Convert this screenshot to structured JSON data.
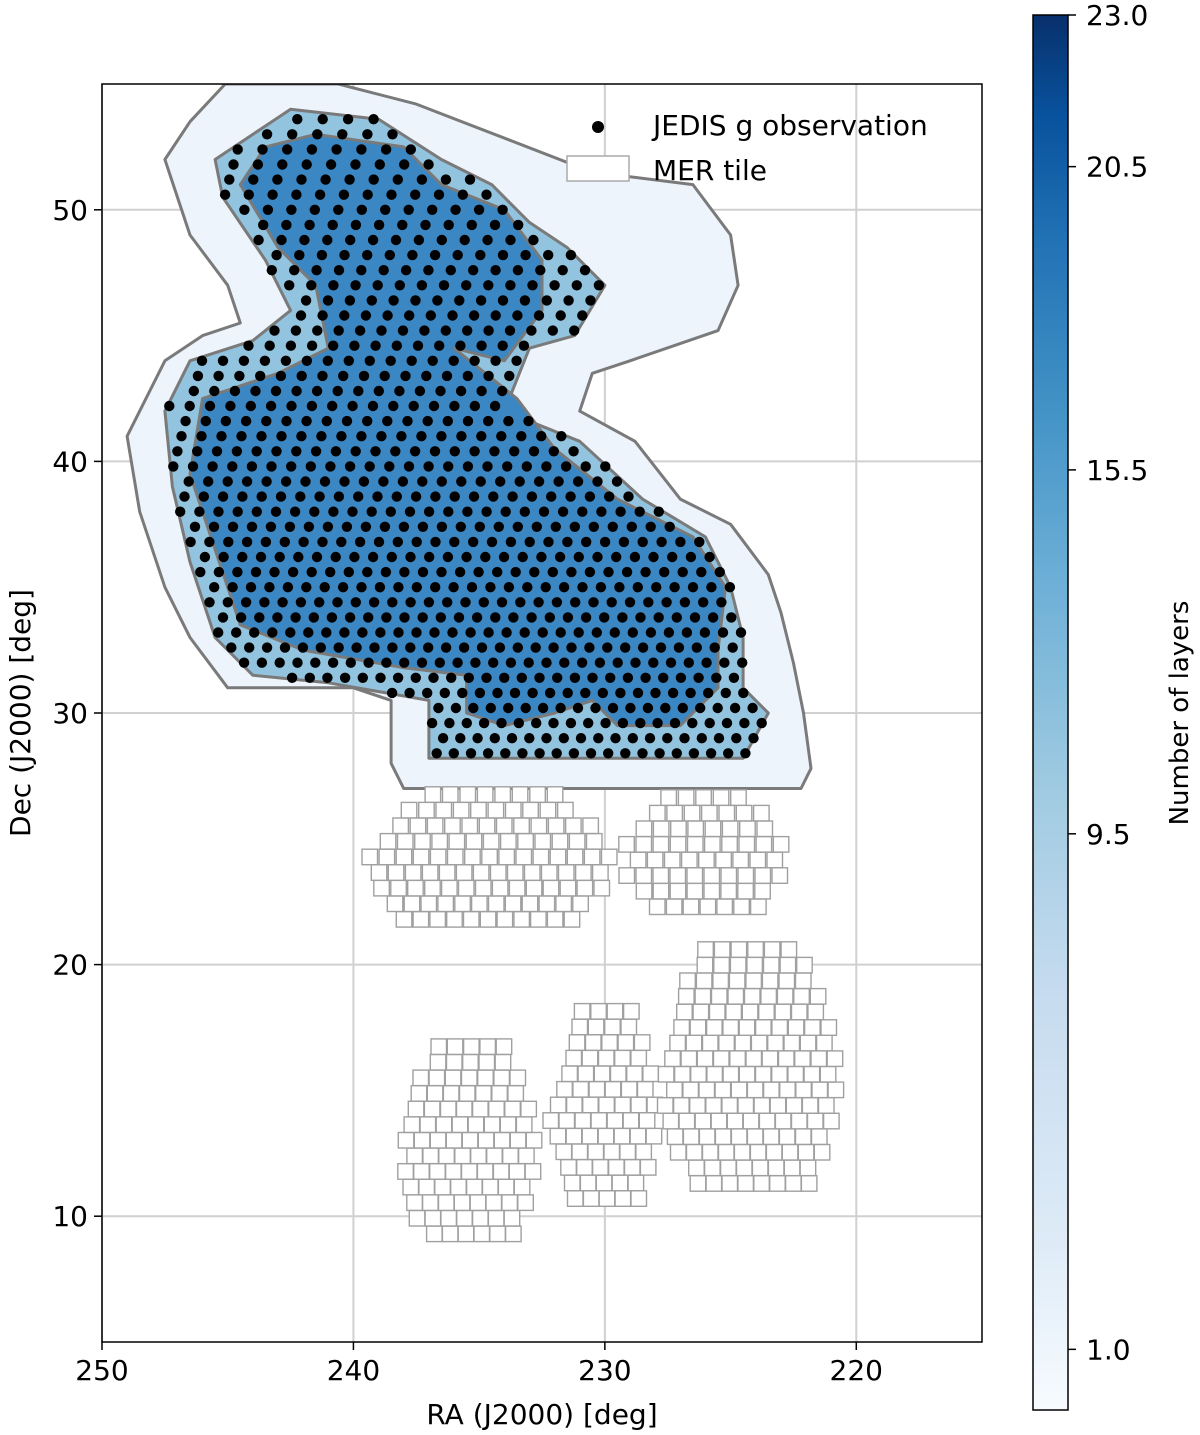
{
  "chart_data": {
    "type": "scatter",
    "xlabel": "RA (J2000) [deg]",
    "ylabel": "Dec (J2000) [deg]",
    "xlim": [
      250,
      215
    ],
    "ylim": [
      5,
      55
    ],
    "xticks": [
      250,
      240,
      230,
      220
    ],
    "yticks": [
      10,
      20,
      30,
      40,
      50
    ],
    "xtick_labels": [
      "250",
      "240",
      "230",
      "220"
    ],
    "ytick_labels": [
      "10",
      "20",
      "30",
      "40",
      "50"
    ],
    "grid": true,
    "legend": {
      "placement": "top-right",
      "entries": [
        {
          "label": "JEDIS g observation",
          "marker": "dot",
          "color": "#000000"
        },
        {
          "label": "MER tile",
          "marker": "square-outline",
          "color": "#999999"
        }
      ]
    },
    "colorbar": {
      "label": "Number of layers",
      "colormap": "Blues",
      "range": [
        0,
        23
      ],
      "ticks": [
        1.0,
        9.5,
        15.5,
        20.5,
        23.0
      ],
      "tick_labels": [
        "1.0",
        "9.5",
        "15.5",
        "20.5",
        "23.0"
      ]
    },
    "coverage_regions": [
      {
        "name": "outer",
        "layers": 1,
        "color": "#eef4fc",
        "outline": [
          [
            245.1,
            55
          ],
          [
            240.6,
            55
          ],
          [
            237.5,
            54.2
          ],
          [
            230.5,
            51.5
          ],
          [
            226.5,
            51
          ],
          [
            225,
            49
          ],
          [
            224.7,
            47
          ],
          [
            225.5,
            45.2
          ],
          [
            229,
            44
          ],
          [
            230.5,
            43.5
          ],
          [
            231,
            42
          ],
          [
            228.8,
            40.8
          ],
          [
            227,
            38.5
          ],
          [
            225,
            37.5
          ],
          [
            223.5,
            35.5
          ],
          [
            223,
            34
          ],
          [
            222.5,
            32
          ],
          [
            222.1,
            30
          ],
          [
            221.8,
            27.8
          ],
          [
            222.2,
            27
          ],
          [
            238,
            27
          ],
          [
            238.5,
            28
          ],
          [
            238.5,
            30.5
          ],
          [
            240,
            31
          ],
          [
            245,
            31
          ],
          [
            246.5,
            33
          ],
          [
            247.5,
            35
          ],
          [
            248.5,
            38
          ],
          [
            249,
            41
          ],
          [
            247.5,
            44
          ],
          [
            246,
            45
          ],
          [
            244.5,
            45.5
          ],
          [
            245,
            47
          ],
          [
            246.5,
            49
          ],
          [
            247.5,
            52
          ],
          [
            246.5,
            53.5
          ]
        ]
      },
      {
        "name": "inner",
        "layers": 12,
        "color": "#93c4df",
        "outline": [
          [
            242.5,
            54
          ],
          [
            239,
            53.6
          ],
          [
            236.5,
            52
          ],
          [
            234.5,
            51
          ],
          [
            233,
            49.5
          ],
          [
            231.5,
            48.5
          ],
          [
            230,
            47
          ],
          [
            231.2,
            45
          ],
          [
            233,
            44.5
          ],
          [
            234,
            42
          ],
          [
            231,
            40.8
          ],
          [
            228.5,
            38.5
          ],
          [
            226,
            37
          ],
          [
            225,
            35
          ],
          [
            224.5,
            33
          ],
          [
            224.5,
            31
          ],
          [
            223.5,
            30
          ],
          [
            224.5,
            28.2
          ],
          [
            237,
            28.2
          ],
          [
            237,
            30.5
          ],
          [
            241,
            31.2
          ],
          [
            244,
            31.5
          ],
          [
            245.5,
            33
          ],
          [
            246.5,
            36
          ],
          [
            247.2,
            39
          ],
          [
            247.5,
            42
          ],
          [
            246.5,
            44
          ],
          [
            244,
            44.8
          ],
          [
            242.5,
            46
          ],
          [
            243.5,
            48
          ],
          [
            245.2,
            50.5
          ],
          [
            245.5,
            52
          ]
        ]
      },
      {
        "name": "deep",
        "layers": 17,
        "color": "#3b87c3",
        "outline": [
          [
            241.5,
            53
          ],
          [
            238,
            52.5
          ],
          [
            236.5,
            51
          ],
          [
            234,
            50
          ],
          [
            232.5,
            48
          ],
          [
            232.5,
            46
          ],
          [
            234,
            44
          ],
          [
            236,
            44.5
          ],
          [
            233.5,
            42.5
          ],
          [
            232,
            40.5
          ],
          [
            229.5,
            38.5
          ],
          [
            226.5,
            37
          ],
          [
            225.2,
            35
          ],
          [
            225.5,
            32.5
          ],
          [
            225.5,
            31
          ],
          [
            227,
            29.5
          ],
          [
            229.5,
            29.5
          ],
          [
            230.5,
            30.5
          ],
          [
            232,
            30
          ],
          [
            234,
            29.5
          ],
          [
            235.5,
            30
          ],
          [
            235.5,
            31.5
          ],
          [
            238,
            31.8
          ],
          [
            242,
            32.5
          ],
          [
            244.5,
            33.5
          ],
          [
            245.5,
            36.5
          ],
          [
            246.5,
            39.5
          ],
          [
            246,
            42.5
          ],
          [
            243,
            43.5
          ],
          [
            241,
            44.5
          ],
          [
            241.5,
            47
          ],
          [
            243,
            48.5
          ],
          [
            244.5,
            51
          ],
          [
            243.5,
            52.5
          ]
        ]
      }
    ],
    "observations_dec_rows": [
      28.4,
      29.0,
      29.6,
      30.2,
      30.8,
      31.4,
      32.0,
      32.6,
      33.2,
      33.8,
      34.4,
      35.0,
      35.6,
      36.2,
      36.8,
      37.4,
      38.0,
      38.6,
      39.2,
      39.8,
      40.4,
      41.0,
      41.6,
      42.2,
      42.8,
      43.4,
      44.0,
      44.6,
      45.2,
      45.8,
      46.4,
      47.0,
      47.6,
      48.2,
      48.8,
      49.4,
      50.0,
      50.6,
      51.2,
      51.8,
      52.4,
      53.0,
      53.6
    ],
    "mer_tile_blocks": [
      {
        "name": "tiles-a",
        "dec_range": [
          21.8,
          26.8
        ],
        "ra_range": [
          229.8,
          239.5
        ]
      },
      {
        "name": "tiles-b",
        "dec_range": [
          22.3,
          26.8
        ],
        "ra_range": [
          222.9,
          229.3
        ]
      },
      {
        "name": "tiles-c",
        "dec_range": [
          9.3,
          16.5
        ],
        "ra_range": [
          232.8,
          238.2
        ]
      },
      {
        "name": "tiles-d",
        "dec_range": [
          10.7,
          18.0
        ],
        "ra_range": [
          228.0,
          232.2
        ]
      },
      {
        "name": "tiles-e",
        "dec_range": [
          11.3,
          20.3
        ],
        "ra_range": [
          220.8,
          227.7
        ]
      }
    ]
  }
}
